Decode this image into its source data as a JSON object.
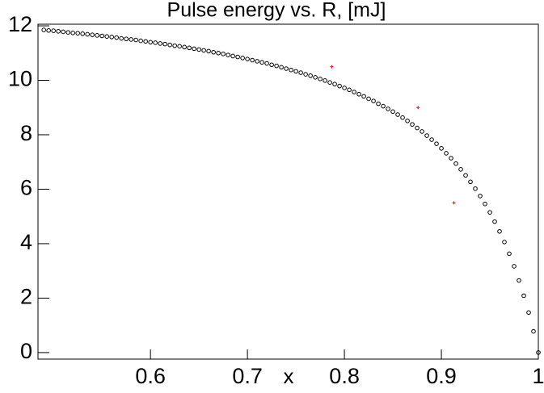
{
  "chart_data": {
    "type": "scatter",
    "title": "Pulse energy vs. R, [mJ]",
    "x_label": "x",
    "xlim": [
      0.484,
      1.0
    ],
    "ylim": [
      -0.24,
      12.06
    ],
    "xticks": [
      0.6,
      0.7,
      0.8,
      0.9,
      1
    ],
    "yticks": [
      0,
      2,
      4,
      6,
      8,
      10,
      12
    ],
    "series": [
      {
        "color": "#000000",
        "marker": "circle",
        "x": [
          0.49,
          0.495,
          0.5,
          0.505,
          0.51,
          0.515,
          0.52,
          0.525,
          0.53,
          0.535,
          0.54,
          0.545,
          0.55,
          0.555,
          0.56,
          0.565,
          0.57,
          0.575,
          0.58,
          0.585,
          0.59,
          0.595,
          0.6,
          0.605,
          0.61,
          0.615,
          0.62,
          0.625,
          0.63,
          0.635,
          0.64,
          0.645,
          0.65,
          0.655,
          0.66,
          0.665,
          0.67,
          0.675,
          0.68,
          0.685,
          0.69,
          0.695,
          0.7,
          0.705,
          0.71,
          0.715,
          0.72,
          0.725,
          0.73,
          0.735,
          0.74,
          0.745,
          0.75,
          0.755,
          0.76,
          0.765,
          0.77,
          0.775,
          0.78,
          0.785,
          0.79,
          0.795,
          0.8,
          0.805,
          0.81,
          0.815,
          0.82,
          0.825,
          0.83,
          0.835,
          0.84,
          0.845,
          0.85,
          0.855,
          0.86,
          0.865,
          0.87,
          0.875,
          0.88,
          0.885,
          0.89,
          0.895,
          0.9,
          0.905,
          0.91,
          0.915,
          0.92,
          0.925,
          0.93,
          0.935,
          0.94,
          0.945,
          0.95,
          0.955,
          0.96,
          0.965,
          0.97,
          0.975,
          0.98,
          0.985,
          0.99,
          0.995,
          1.0
        ],
        "values": [
          11.85,
          11.83,
          11.82,
          11.8,
          11.78,
          11.76,
          11.74,
          11.73,
          11.71,
          11.69,
          11.67,
          11.65,
          11.63,
          11.61,
          11.59,
          11.57,
          11.54,
          11.52,
          11.5,
          11.48,
          11.45,
          11.43,
          11.4,
          11.38,
          11.35,
          11.33,
          11.3,
          11.27,
          11.25,
          11.22,
          11.19,
          11.16,
          11.13,
          11.1,
          11.07,
          11.03,
          11.0,
          10.97,
          10.93,
          10.89,
          10.86,
          10.82,
          10.78,
          10.74,
          10.7,
          10.66,
          10.62,
          10.57,
          10.53,
          10.48,
          10.43,
          10.38,
          10.33,
          10.28,
          10.22,
          10.17,
          10.11,
          10.05,
          9.99,
          9.92,
          9.86,
          9.79,
          9.72,
          9.65,
          9.57,
          9.49,
          9.41,
          9.32,
          9.24,
          9.14,
          9.05,
          8.95,
          8.85,
          8.74,
          8.63,
          8.51,
          8.38,
          8.25,
          8.12,
          7.97,
          7.82,
          7.67,
          7.5,
          7.32,
          7.14,
          6.94,
          6.73,
          6.51,
          6.27,
          6.02,
          5.75,
          5.46,
          5.15,
          4.81,
          4.45,
          4.06,
          3.63,
          3.17,
          2.65,
          2.09,
          1.47,
          0.78,
          0
        ]
      },
      {
        "color": "#ff0000",
        "marker": "plus",
        "x": [
          0.787,
          0.876,
          0.913
        ],
        "values": [
          10.5,
          9.0,
          5.5
        ]
      }
    ]
  }
}
